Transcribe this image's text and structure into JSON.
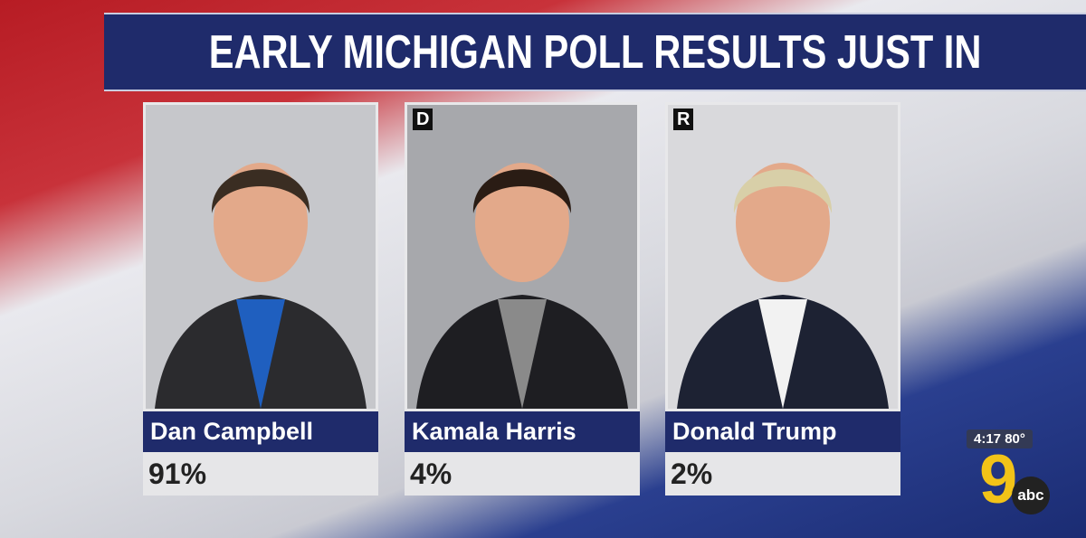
{
  "header": {
    "title": "EARLY MICHIGAN POLL RESULTS JUST IN"
  },
  "candidates": [
    {
      "name": "Dan Campbell",
      "result": "91%"
    },
    {
      "party": "D",
      "name": "Kamala Harris",
      "result": "4%"
    },
    {
      "party": "R",
      "name": "Donald Trump",
      "result": "2%"
    }
  ],
  "station": {
    "time": "4:17",
    "temperature": "80°",
    "channel": "9",
    "network": "abc"
  }
}
